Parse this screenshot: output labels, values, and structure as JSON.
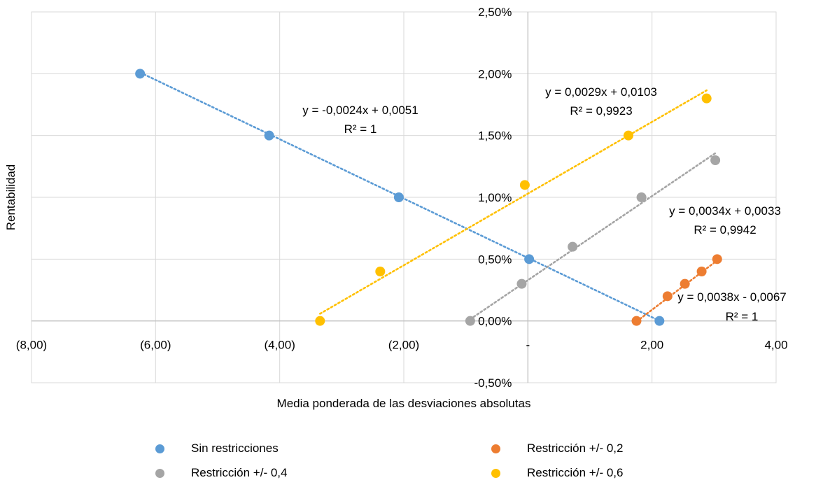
{
  "chart_data": {
    "type": "scatter",
    "xlabel": "Media ponderada de las desviaciones absolutas",
    "ylabel": "Rentabilidad",
    "xlim": [
      -8,
      4
    ],
    "ylim": [
      -0.005,
      0.025
    ],
    "x_ticks": [
      {
        "value": -8,
        "label": "(8,00)"
      },
      {
        "value": -6,
        "label": "(6,00)"
      },
      {
        "value": -4,
        "label": "(4,00)"
      },
      {
        "value": -2,
        "label": "(2,00)"
      },
      {
        "value": 0,
        "label": "-"
      },
      {
        "value": 2,
        "label": "2,00"
      },
      {
        "value": 4,
        "label": "4,00"
      }
    ],
    "y_ticks": [
      {
        "value": -0.005,
        "label": "-0,50%"
      },
      {
        "value": 0,
        "label": "0,00%"
      },
      {
        "value": 0.005,
        "label": "0,50%"
      },
      {
        "value": 0.01,
        "label": "1,00%"
      },
      {
        "value": 0.015,
        "label": "1,50%"
      },
      {
        "value": 0.02,
        "label": "2,00%"
      },
      {
        "value": 0.025,
        "label": "2,50%"
      }
    ],
    "grid": true,
    "legend_position": "bottom",
    "series": [
      {
        "name": "Sin restricciones",
        "color": "#5B9BD5",
        "points": [
          [
            -6.25,
            0.02
          ],
          [
            -4.17,
            0.015
          ],
          [
            -2.08,
            0.01
          ],
          [
            0.02,
            0.005
          ],
          [
            2.12,
            0.0
          ]
        ],
        "trendline": {
          "x_range": [
            -6.25,
            2.12
          ],
          "slope": -0.0024,
          "intercept": 0.0051
        },
        "equation": "y = -0,0024x + 0,0051",
        "r2": "R² = 1"
      },
      {
        "name": "Restricción +/- 0,2",
        "color": "#ED7D31",
        "points": [
          [
            1.75,
            0.0
          ],
          [
            2.25,
            0.002
          ],
          [
            2.53,
            0.003
          ],
          [
            2.8,
            0.004
          ],
          [
            3.05,
            0.005
          ]
        ],
        "trendline": {
          "x_range": [
            1.75,
            3.05
          ],
          "slope": 0.0038,
          "intercept": -0.0067
        },
        "equation": "y = 0,0038x - 0,0067",
        "r2": "R² = 1"
      },
      {
        "name": "Restricción +/- 0,4",
        "color": "#A5A5A5",
        "points": [
          [
            -0.93,
            0.0
          ],
          [
            -0.1,
            0.003
          ],
          [
            0.72,
            0.006
          ],
          [
            1.83,
            0.01
          ],
          [
            3.02,
            0.013
          ]
        ],
        "trendline": {
          "x_range": [
            -0.93,
            3.02
          ],
          "slope": 0.0034,
          "intercept": 0.0033
        },
        "equation": "y = 0,0034x + 0,0033",
        "r2": "R² = 0,9942"
      },
      {
        "name": "Restricción +/- 0,6",
        "color": "#FFC000",
        "points": [
          [
            -3.35,
            0.0
          ],
          [
            -2.38,
            0.004
          ],
          [
            -0.05,
            0.011
          ],
          [
            1.62,
            0.015
          ],
          [
            2.88,
            0.018
          ]
        ],
        "trendline": {
          "x_range": [
            -3.35,
            2.88
          ],
          "slope": 0.0029,
          "intercept": 0.0103
        },
        "equation": "y = 0,0029x + 0,0103",
        "r2": "R² = 0,9923"
      }
    ]
  }
}
